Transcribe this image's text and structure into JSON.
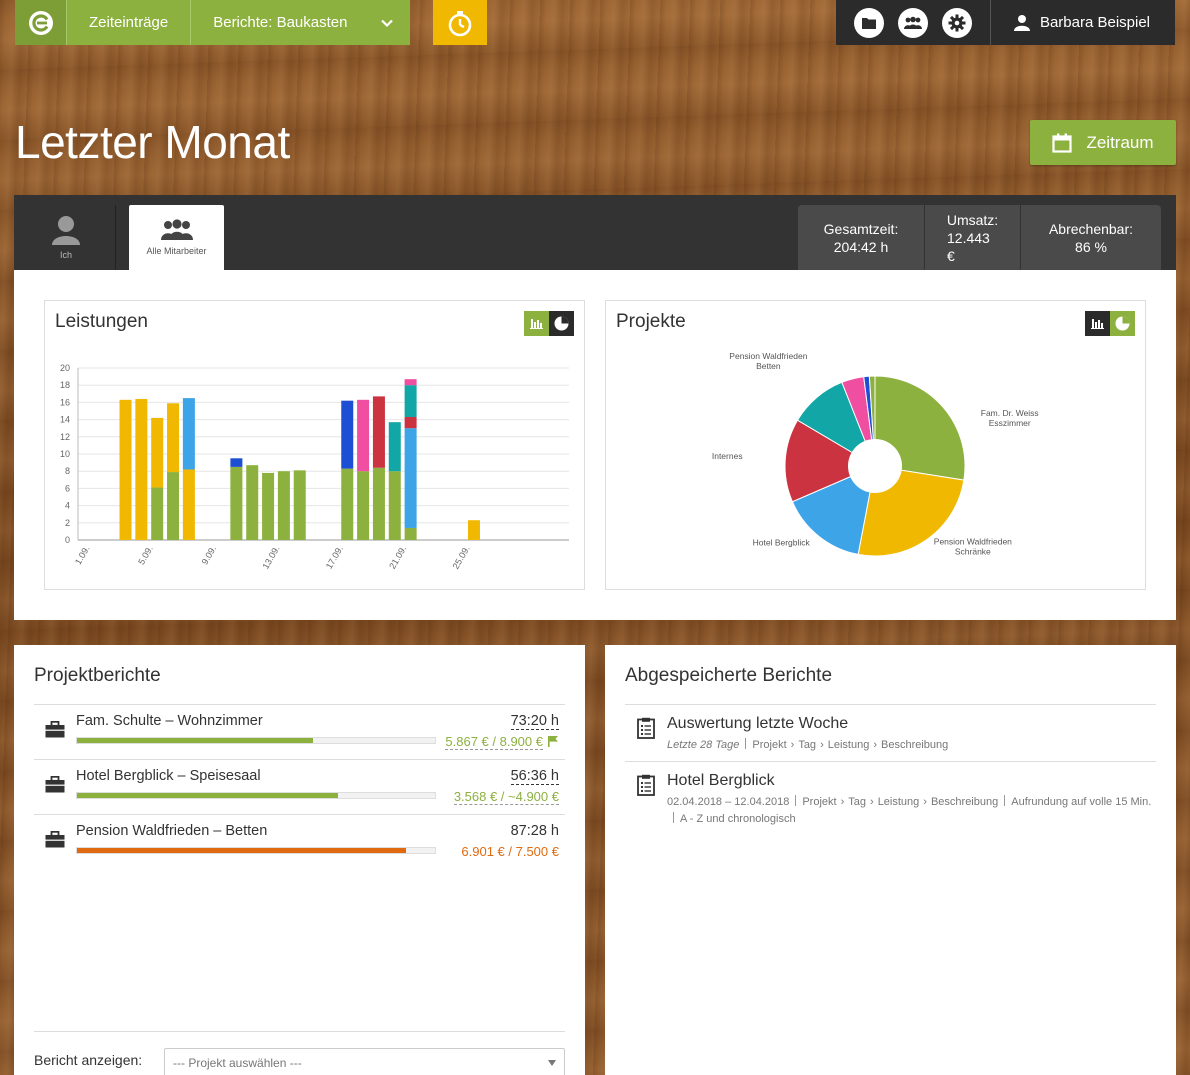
{
  "nav": {
    "items": [
      {
        "label": "Zeiteinträge"
      }
    ],
    "reports_dropdown": "Berichte: Baukasten",
    "user_name": "Barbara Beispiel",
    "icons": [
      "logo-icon",
      "stopwatch-icon",
      "folder-icon",
      "team-icon",
      "gear-icon",
      "user-icon"
    ]
  },
  "page": {
    "title": "Letzter Monat",
    "zeitraum_label": "Zeitraum"
  },
  "tabs": {
    "ich": "Ich",
    "alle": "Alle Mitarbeiter"
  },
  "stats": {
    "gesamtzeit_label": "Gesamtzeit:",
    "gesamtzeit_value": "204:42 h",
    "umsatz_label": "Umsatz:",
    "umsatz_value": "12.443 €",
    "abrechenbar_label": "Abrechenbar:",
    "abrechenbar_value": "86 %"
  },
  "colors": {
    "green": "#8db13f",
    "yellow": "#f0b800",
    "blue": "#3ea4e8",
    "darkblue": "#1c4fd4",
    "red": "#cc3340",
    "pink": "#f04ea0",
    "teal": "#12a6a6",
    "orange": "#e06a10"
  },
  "chart_data": [
    {
      "type": "bar",
      "title": "Leistungen",
      "stacked": true,
      "ylim": [
        0,
        20
      ],
      "yticks": [
        0,
        2,
        4,
        6,
        8,
        10,
        12,
        14,
        16,
        18,
        20
      ],
      "xtick_labels": [
        "1.09.",
        "5.09.",
        "9.09.",
        "13.09.",
        "17.09.",
        "21.09.",
        "25.09."
      ],
      "xtick_days": [
        1,
        5,
        9,
        13,
        17,
        21,
        25
      ],
      "x_range": [
        0,
        31
      ],
      "grid": true,
      "bars": [
        {
          "day": 3,
          "segments": [
            {
              "color": "yellow",
              "value": 16.3
            }
          ]
        },
        {
          "day": 4,
          "segments": [
            {
              "color": "yellow",
              "value": 16.4
            }
          ]
        },
        {
          "day": 5,
          "segments": [
            {
              "color": "green",
              "value": 6.1
            },
            {
              "color": "yellow",
              "value": 8.1
            }
          ]
        },
        {
          "day": 6,
          "segments": [
            {
              "color": "green",
              "value": 7.9
            },
            {
              "color": "yellow",
              "value": 8.0
            }
          ]
        },
        {
          "day": 7,
          "segments": [
            {
              "color": "yellow",
              "value": 8.2
            },
            {
              "color": "blue",
              "value": 8.3
            }
          ]
        },
        {
          "day": 10,
          "segments": [
            {
              "color": "green",
              "value": 8.5
            },
            {
              "color": "darkblue",
              "value": 1.0
            }
          ]
        },
        {
          "day": 11,
          "segments": [
            {
              "color": "green",
              "value": 8.7
            }
          ]
        },
        {
          "day": 12,
          "segments": [
            {
              "color": "green",
              "value": 7.8
            }
          ]
        },
        {
          "day": 13,
          "segments": [
            {
              "color": "green",
              "value": 8.0
            }
          ]
        },
        {
          "day": 14,
          "segments": [
            {
              "color": "green",
              "value": 8.1
            }
          ]
        },
        {
          "day": 17,
          "segments": [
            {
              "color": "green",
              "value": 8.3
            },
            {
              "color": "darkblue",
              "value": 7.9
            }
          ]
        },
        {
          "day": 18,
          "segments": [
            {
              "color": "green",
              "value": 8.0
            },
            {
              "color": "pink",
              "value": 8.3
            }
          ]
        },
        {
          "day": 19,
          "segments": [
            {
              "color": "green",
              "value": 8.4
            },
            {
              "color": "red",
              "value": 8.3
            }
          ]
        },
        {
          "day": 20,
          "segments": [
            {
              "color": "green",
              "value": 8.0
            },
            {
              "color": "teal",
              "value": 5.7
            }
          ]
        },
        {
          "day": 21,
          "segments": [
            {
              "color": "green",
              "value": 1.4
            },
            {
              "color": "blue",
              "value": 11.6
            },
            {
              "color": "red",
              "value": 1.3
            },
            {
              "color": "teal",
              "value": 3.7
            },
            {
              "color": "pink",
              "value": 0.7
            }
          ]
        },
        {
          "day": 25,
          "segments": [
            {
              "color": "yellow",
              "value": 2.3
            }
          ]
        }
      ]
    },
    {
      "type": "pie",
      "title": "Projekte",
      "donut": true,
      "slices": [
        {
          "label": "Fam. Dr. Weiss Esszimmer",
          "value": 27.5,
          "color": "green"
        },
        {
          "label": "Pension Waldfrieden Schränke",
          "value": 25.5,
          "color": "yellow"
        },
        {
          "label": "Hotel Bergblick",
          "value": 15.5,
          "color": "blue"
        },
        {
          "label": "Internes",
          "value": 15.0,
          "color": "red"
        },
        {
          "label": "Pension Waldfrieden Betten",
          "value": 10.5,
          "color": "teal"
        },
        {
          "label": "",
          "value": 4.0,
          "color": "pink"
        },
        {
          "label": "",
          "value": 1.0,
          "color": "darkblue"
        },
        {
          "label": "",
          "value": 1.0,
          "color": "green"
        }
      ],
      "label_lines": {
        "Fam. Dr. Weiss Esszimmer": [
          "Fam. Dr. Weiss",
          "Esszimmer"
        ],
        "Pension Waldfrieden Schränke": [
          "Pension Waldfrieden",
          "Schränke"
        ],
        "Hotel Bergblick": [
          "Hotel Bergblick"
        ],
        "Internes": [
          "Internes"
        ],
        "Pension Waldfrieden Betten": [
          "Pension Waldfrieden",
          "Betten"
        ]
      }
    }
  ],
  "projektberichte": {
    "title": "Projektberichte",
    "rows": [
      {
        "name": "Fam. Schulte – Wohnzimmer",
        "time": "73:20 h",
        "money": "5.867 € / 8.900 €",
        "progress": 0.66,
        "color": "#8db13f",
        "money_color": "#8db13f",
        "flag": true,
        "dashed": true
      },
      {
        "name": "Hotel Bergblick – Speisesaal",
        "time": "56:36 h",
        "money": "3.568 € / ~4.900 €",
        "progress": 0.73,
        "color": "#8db13f",
        "money_color": "#8db13f",
        "flag": false,
        "dashed": true
      },
      {
        "name": "Pension Waldfrieden – Betten",
        "time": "87:28 h",
        "money": "6.901 € / 7.500 €",
        "progress": 0.92,
        "color": "#e06a10",
        "money_color": "#e06a10",
        "flag": false,
        "dashed": false
      }
    ],
    "bericht_label": "Bericht anzeigen:",
    "select_placeholder": "--- Projekt auswählen ---"
  },
  "gespeichert": {
    "title": "Abgespeicherte Berichte",
    "rows": [
      {
        "name": "Auswertung letzte Woche",
        "range": "Letzte 28 Tage",
        "fields": [
          "Projekt",
          "Tag",
          "Leistung",
          "Beschreibung"
        ]
      },
      {
        "name": "Hotel Bergblick",
        "range": "02.04.2018 – 12.04.2018",
        "fields": [
          "Projekt",
          "Tag",
          "Leistung",
          "Beschreibung"
        ],
        "rounding": "Aufrundung auf volle 15 Min.",
        "order": "A - Z und chronologisch"
      }
    ]
  }
}
